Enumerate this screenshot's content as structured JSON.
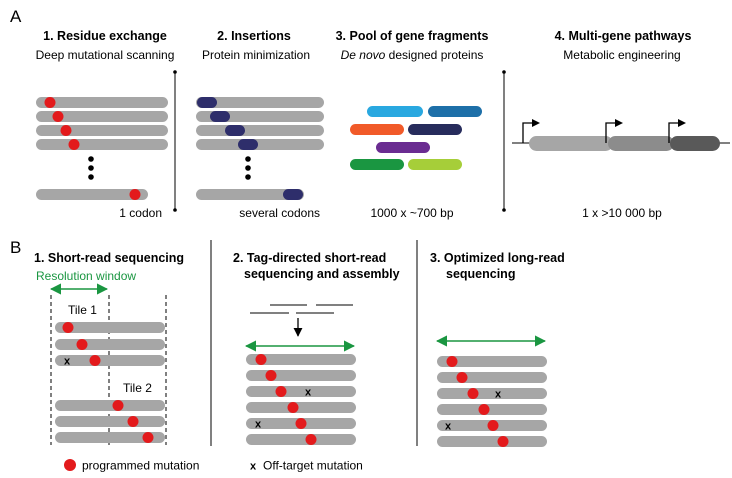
{
  "panel_a": {
    "letter": "A",
    "sections": [
      {
        "title": "1. Residue exchange",
        "subtitle": "Deep mutational scanning",
        "footer": "1 codon"
      },
      {
        "title": "2. Insertions",
        "subtitle": "Protein minimization",
        "footer": "several codons"
      },
      {
        "title": "3. Pool of gene fragments",
        "subtitle_italic": "De novo",
        "subtitle_rest": " designed proteins",
        "footer": "1000 x ~700 bp"
      },
      {
        "title": "4. Multi-gene pathways",
        "subtitle": "Metabolic engineering",
        "footer": "1 x >10 000 bp"
      }
    ],
    "fragment_colors": [
      "#29a8e0",
      "#1d6fa8",
      "#f15a29",
      "#272c5c",
      "#6a2c91",
      "#1a9641",
      "#a6ce39"
    ],
    "pathway_gene_colors": [
      "#a6a6a6",
      "#8c8c8c",
      "#595959"
    ]
  },
  "panel_b": {
    "letter": "B",
    "sections": [
      {
        "title_lines": [
          "1. Short-read sequencing"
        ],
        "resolution_label": "Resolution window",
        "tile_labels": [
          "Tile 1",
          "Tile 2"
        ]
      },
      {
        "title_lines": [
          "2.  Tag-directed short-read",
          "sequencing and assembly"
        ]
      },
      {
        "title_lines": [
          "3. Optimized long-read",
          "sequencing"
        ]
      }
    ]
  },
  "colors": {
    "read": "#a6a6a6",
    "programmed_mutation": "#e31a1c",
    "insertion": "#2e2e6b",
    "window_arrow": "#1a9641"
  },
  "legend": {
    "programmed_label": "programmed mutation",
    "offtarget_symbol": "x",
    "offtarget_label": "Off-target mutation"
  }
}
